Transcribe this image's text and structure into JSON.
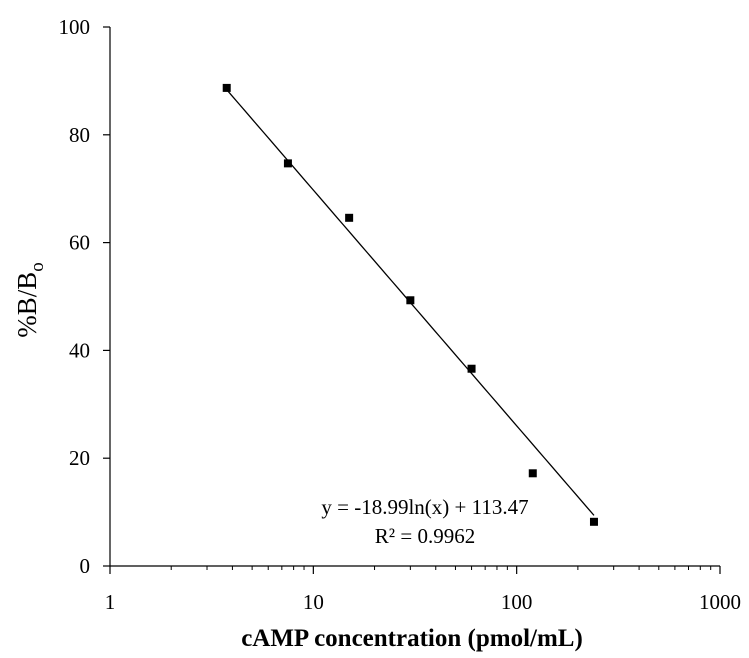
{
  "chart_data": {
    "type": "scatter",
    "xscale": "log",
    "xlim": [
      1,
      1000
    ],
    "ylim": [
      0,
      100
    ],
    "grid": false,
    "xlabel": "cAMP concentration (pmol/mL)",
    "ylabel": {
      "main": "%B/B",
      "sub": "o"
    },
    "x_ticks": [
      1,
      10,
      100,
      1000
    ],
    "x_tick_labels": [
      "1",
      "10",
      "100",
      "1000"
    ],
    "y_ticks": [
      0,
      20,
      40,
      60,
      80,
      100
    ],
    "y_tick_labels": [
      "0",
      "20",
      "40",
      "60",
      "80",
      "100"
    ],
    "points": {
      "x": [
        3.75,
        7.5,
        15,
        30,
        60,
        120,
        240
      ],
      "y": [
        88.7,
        74.7,
        64.6,
        49.3,
        36.6,
        17.2,
        8.2
      ]
    },
    "trendline": {
      "type": "logarithmic",
      "slope": -18.99,
      "intercept": 113.47,
      "x_range": [
        3.75,
        240
      ]
    },
    "annotations": {
      "equation": "y = -18.99ln(x) + 113.47",
      "r_squared": "R² = 0.9962"
    },
    "colors": {
      "marker": "#000000",
      "line": "#000000",
      "axis": "#000000"
    }
  }
}
